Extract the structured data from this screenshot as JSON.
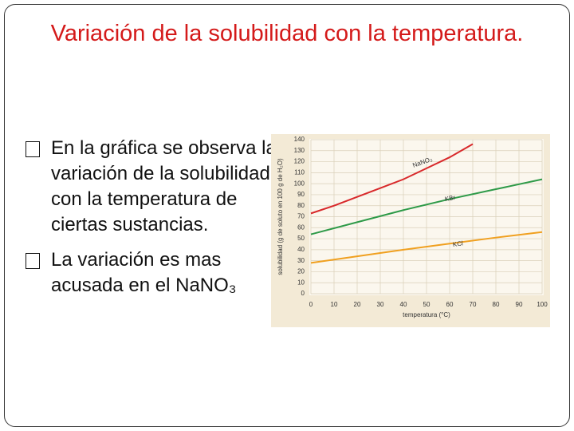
{
  "title": "Variación de la solubilidad con la temperatura.",
  "bullets": [
    "En la gráfica se observa la variación de la solubilidad con la temperatura de ciertas sustancias.",
    "La variación es mas acusada en el NaNO₃"
  ],
  "chart_data": {
    "type": "line",
    "ylabel": "solubilidad (g de soluto en 100 g de H₂O)",
    "xlabel": "temperatura (°C)",
    "xlim": [
      0,
      100
    ],
    "xticks": [
      0,
      10,
      20,
      30,
      40,
      50,
      60,
      70,
      80,
      90,
      100
    ],
    "ylim": [
      0,
      140
    ],
    "yticks": [
      0,
      10,
      20,
      30,
      40,
      50,
      60,
      70,
      80,
      90,
      100,
      110,
      120,
      130,
      140
    ],
    "grid": true,
    "series": [
      {
        "name": "NaNO₃",
        "color": "#d8282a",
        "x": [
          0,
          10,
          20,
          30,
          40,
          50,
          60,
          70
        ],
        "values": [
          73,
          80,
          88,
          96,
          104,
          114,
          124,
          136
        ]
      },
      {
        "name": "KBr",
        "color": "#2e9a48",
        "x": [
          0,
          20,
          40,
          60,
          80,
          100
        ],
        "values": [
          54,
          65,
          76,
          86,
          95,
          104
        ]
      },
      {
        "name": "KCl",
        "color": "#f0a020",
        "x": [
          0,
          20,
          40,
          60,
          80,
          100
        ],
        "values": [
          28,
          34,
          40,
          45.5,
          51,
          56
        ]
      }
    ]
  }
}
